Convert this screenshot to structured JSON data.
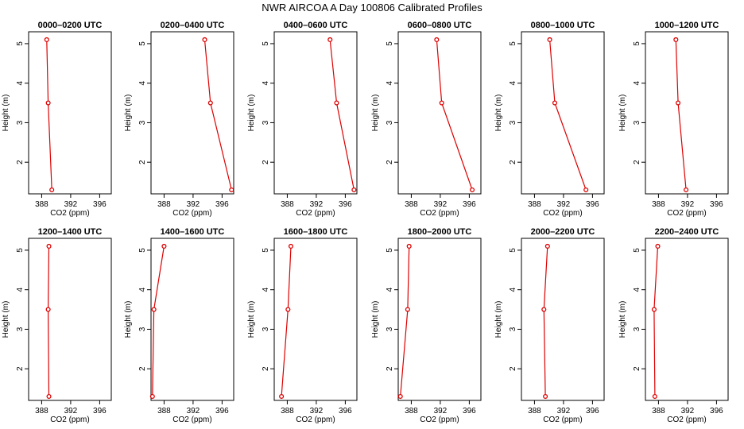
{
  "title": "NWR AIRCOA A  Day 100806  Calibrated Profiles",
  "colors": {
    "series": "#dd0000",
    "axis": "#000000"
  },
  "chart_data": [
    {
      "type": "line",
      "title": "0000–0200 UTC",
      "xlabel": "CO2 (ppm)",
      "ylabel": "Height (m)",
      "xlim": [
        386.2,
        397.6
      ],
      "ylim": [
        1.2,
        5.3
      ],
      "xticks": [
        "388",
        "392",
        "396"
      ],
      "yticks": [
        "2",
        "3",
        "4",
        "5"
      ],
      "grid": false,
      "x": [
        388.7,
        388.9,
        389.4
      ],
      "y": [
        5.1,
        3.5,
        1.3
      ]
    },
    {
      "type": "line",
      "title": "0200–0400 UTC",
      "xlabel": "CO2 (ppm)",
      "ylabel": "Height (m)",
      "xlim": [
        386.2,
        397.6
      ],
      "ylim": [
        1.2,
        5.3
      ],
      "xticks": [
        "388",
        "392",
        "396"
      ],
      "yticks": [
        "2",
        "3",
        "4",
        "5"
      ],
      "grid": false,
      "x": [
        393.6,
        394.4,
        397.3
      ],
      "y": [
        5.1,
        3.5,
        1.3
      ]
    },
    {
      "type": "line",
      "title": "0400–0600 UTC",
      "xlabel": "CO2 (ppm)",
      "ylabel": "Height (m)",
      "xlim": [
        386.2,
        397.6
      ],
      "ylim": [
        1.2,
        5.3
      ],
      "xticks": [
        "388",
        "392",
        "396"
      ],
      "yticks": [
        "2",
        "3",
        "4",
        "5"
      ],
      "grid": false,
      "x": [
        393.9,
        394.8,
        397.2
      ],
      "y": [
        5.1,
        3.5,
        1.3
      ]
    },
    {
      "type": "line",
      "title": "0600–0800 UTC",
      "xlabel": "CO2 (ppm)",
      "ylabel": "Height (m)",
      "xlim": [
        386.2,
        397.6
      ],
      "ylim": [
        1.2,
        5.3
      ],
      "xticks": [
        "388",
        "392",
        "396"
      ],
      "yticks": [
        "2",
        "3",
        "4",
        "5"
      ],
      "grid": false,
      "x": [
        391.5,
        392.2,
        396.4
      ],
      "y": [
        5.1,
        3.5,
        1.3
      ]
    },
    {
      "type": "line",
      "title": "0800–1000 UTC",
      "xlabel": "CO2 (ppm)",
      "ylabel": "Height (m)",
      "xlim": [
        386.2,
        397.6
      ],
      "ylim": [
        1.2,
        5.3
      ],
      "xticks": [
        "388",
        "392",
        "396"
      ],
      "yticks": [
        "2",
        "3",
        "4",
        "5"
      ],
      "grid": false,
      "x": [
        390.1,
        390.8,
        395.1
      ],
      "y": [
        5.1,
        3.5,
        1.3
      ]
    },
    {
      "type": "line",
      "title": "1000–1200 UTC",
      "xlabel": "CO2 (ppm)",
      "ylabel": "Height (m)",
      "xlim": [
        386.2,
        397.6
      ],
      "ylim": [
        1.2,
        5.3
      ],
      "xticks": [
        "388",
        "392",
        "396"
      ],
      "yticks": [
        "2",
        "3",
        "4",
        "5"
      ],
      "grid": false,
      "x": [
        390.4,
        390.7,
        391.8
      ],
      "y": [
        5.1,
        3.5,
        1.3
      ]
    },
    {
      "type": "line",
      "title": "1200–1400 UTC",
      "xlabel": "CO2 (ppm)",
      "ylabel": "Height (m)",
      "xlim": [
        386.2,
        397.6
      ],
      "ylim": [
        1.2,
        5.3
      ],
      "xticks": [
        "388",
        "392",
        "396"
      ],
      "yticks": [
        "2",
        "3",
        "4",
        "5"
      ],
      "grid": false,
      "x": [
        389.0,
        388.9,
        389.0
      ],
      "y": [
        5.1,
        3.5,
        1.3
      ]
    },
    {
      "type": "line",
      "title": "1400–1600 UTC",
      "xlabel": "CO2 (ppm)",
      "ylabel": "Height (m)",
      "xlim": [
        386.2,
        397.6
      ],
      "ylim": [
        1.2,
        5.3
      ],
      "xticks": [
        "388",
        "392",
        "396"
      ],
      "yticks": [
        "2",
        "3",
        "4",
        "5"
      ],
      "grid": false,
      "x": [
        388.0,
        386.6,
        386.4
      ],
      "y": [
        5.1,
        3.5,
        1.3
      ]
    },
    {
      "type": "line",
      "title": "1600–1800 UTC",
      "xlabel": "CO2 (ppm)",
      "ylabel": "Height (m)",
      "xlim": [
        386.2,
        397.6
      ],
      "ylim": [
        1.2,
        5.3
      ],
      "xticks": [
        "388",
        "392",
        "396"
      ],
      "yticks": [
        "2",
        "3",
        "4",
        "5"
      ],
      "grid": false,
      "x": [
        388.5,
        388.1,
        387.2
      ],
      "y": [
        5.1,
        3.5,
        1.3
      ]
    },
    {
      "type": "line",
      "title": "1800–2000 UTC",
      "xlabel": "CO2 (ppm)",
      "ylabel": "Height (m)",
      "xlim": [
        386.2,
        397.6
      ],
      "ylim": [
        1.2,
        5.3
      ],
      "xticks": [
        "388",
        "392",
        "396"
      ],
      "yticks": [
        "2",
        "3",
        "4",
        "5"
      ],
      "grid": false,
      "x": [
        387.7,
        387.5,
        386.5
      ],
      "y": [
        5.1,
        3.5,
        1.3
      ]
    },
    {
      "type": "line",
      "title": "2000–2200 UTC",
      "xlabel": "CO2 (ppm)",
      "ylabel": "Height (m)",
      "xlim": [
        386.2,
        397.6
      ],
      "ylim": [
        1.2,
        5.3
      ],
      "xticks": [
        "388",
        "392",
        "396"
      ],
      "yticks": [
        "2",
        "3",
        "4",
        "5"
      ],
      "grid": false,
      "x": [
        389.8,
        389.3,
        389.5
      ],
      "y": [
        5.1,
        3.5,
        1.3
      ]
    },
    {
      "type": "line",
      "title": "2200–2400 UTC",
      "xlabel": "CO2 (ppm)",
      "ylabel": "Height (m)",
      "xlim": [
        386.2,
        397.6
      ],
      "ylim": [
        1.2,
        5.3
      ],
      "xticks": [
        "388",
        "392",
        "396"
      ],
      "yticks": [
        "2",
        "3",
        "4",
        "5"
      ],
      "grid": false,
      "x": [
        387.9,
        387.4,
        387.5
      ],
      "y": [
        5.1,
        3.5,
        1.3
      ]
    }
  ]
}
